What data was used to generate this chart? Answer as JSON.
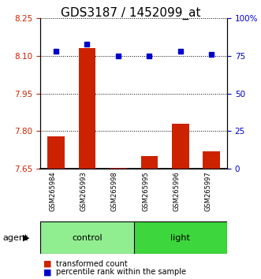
{
  "title": "GDS3187 / 1452099_at",
  "samples": [
    "GSM265984",
    "GSM265993",
    "GSM265998",
    "GSM265995",
    "GSM265996",
    "GSM265997"
  ],
  "transformed_count": [
    7.78,
    8.13,
    7.655,
    7.7,
    7.83,
    7.72
  ],
  "percentile_rank": [
    78,
    83,
    75,
    75,
    78,
    76
  ],
  "ylim_left": [
    7.65,
    8.25
  ],
  "ylim_right": [
    0,
    100
  ],
  "yticks_left": [
    7.65,
    7.8,
    7.95,
    8.1,
    8.25
  ],
  "yticks_right": [
    0,
    25,
    50,
    75,
    100
  ],
  "ytick_labels_right": [
    "0",
    "25",
    "50",
    "75",
    "100%"
  ],
  "groups": [
    {
      "name": "control",
      "indices": [
        0,
        1,
        2
      ],
      "color": "#90EE90"
    },
    {
      "name": "light",
      "indices": [
        3,
        4,
        5
      ],
      "color": "#3DD63D"
    }
  ],
  "bar_color": "#CC2200",
  "dot_color": "#0000CC",
  "bar_width": 0.55,
  "left_axis_color": "#CC2200",
  "right_axis_color": "#0000CC",
  "title_fontsize": 11,
  "tick_fontsize": 7.5,
  "label_fontsize": 7.5,
  "agent_label": "agent",
  "legend_red_label": "transformed count",
  "legend_blue_label": "percentile rank within the sample",
  "group_box_color": "#CCCCCC"
}
